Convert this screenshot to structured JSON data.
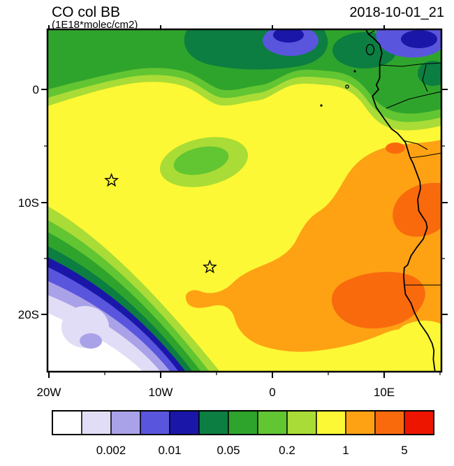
{
  "header": {
    "title": "CO col BB",
    "units": "(1E18*molec/cm2)",
    "timestamp": "2018-10-01_21"
  },
  "chart_data": {
    "type": "heatmap",
    "title": "CO col BB",
    "units": "1E18*molec/cm2",
    "time": "2018-10-01_21",
    "lon_range": [
      -20,
      15.1
    ],
    "lat_range": [
      -25.1,
      5.3
    ],
    "x_ticks": [
      {
        "label": "20W",
        "lon": -20
      },
      {
        "label": "10W",
        "lon": -10
      },
      {
        "label": "0",
        "lon": 0
      },
      {
        "label": "10E",
        "lon": 10
      }
    ],
    "y_ticks": [
      {
        "label": "0",
        "lat": 0
      },
      {
        "label": "10S",
        "lat": -10
      },
      {
        "label": "20S",
        "lat": -20
      }
    ],
    "colorbar": {
      "levels": [
        0.001,
        0.002,
        0.005,
        0.01,
        0.02,
        0.05,
        0.1,
        0.2,
        0.5,
        1,
        2,
        5
      ],
      "tick_labels": [
        "0.002",
        "0.01",
        "0.05",
        "0.2",
        "1",
        "5"
      ],
      "tick_level_indices": [
        1,
        3,
        5,
        7,
        9,
        11
      ],
      "cell_colors": [
        "#ffffff",
        "#e2ddf6",
        "#aaa2e8",
        "#5a55dd",
        "#1a17a8",
        "#0c7e41",
        "#2fa42c",
        "#62c532",
        "#a9dc36",
        "#fdf835",
        "#fea214",
        "#f96a0d",
        "#ee1500"
      ]
    },
    "markers": [
      {
        "symbol": "star",
        "lon": -14.4,
        "lat": -8.1
      },
      {
        "symbol": "star",
        "lon": -5.6,
        "lat": -15.8
      }
    ],
    "field_summary": [
      {
        "region": "equatorial band across top",
        "value_1e18": "0.05-0.5"
      },
      {
        "region": "patches at top edge and NE corner",
        "value_1e18": "0.005-0.02"
      },
      {
        "region": "central basin (dominant yellow)",
        "value_1e18": "0.5-1"
      },
      {
        "region": "eastern/coastal land side (orange)",
        "value_1e18": "1-2"
      },
      {
        "region": "hotspots near coast ~10S and interior ~18S",
        "value_1e18": "2-5"
      },
      {
        "region": "far southwest corner",
        "value_1e18": "<0.001-0.01"
      }
    ]
  }
}
